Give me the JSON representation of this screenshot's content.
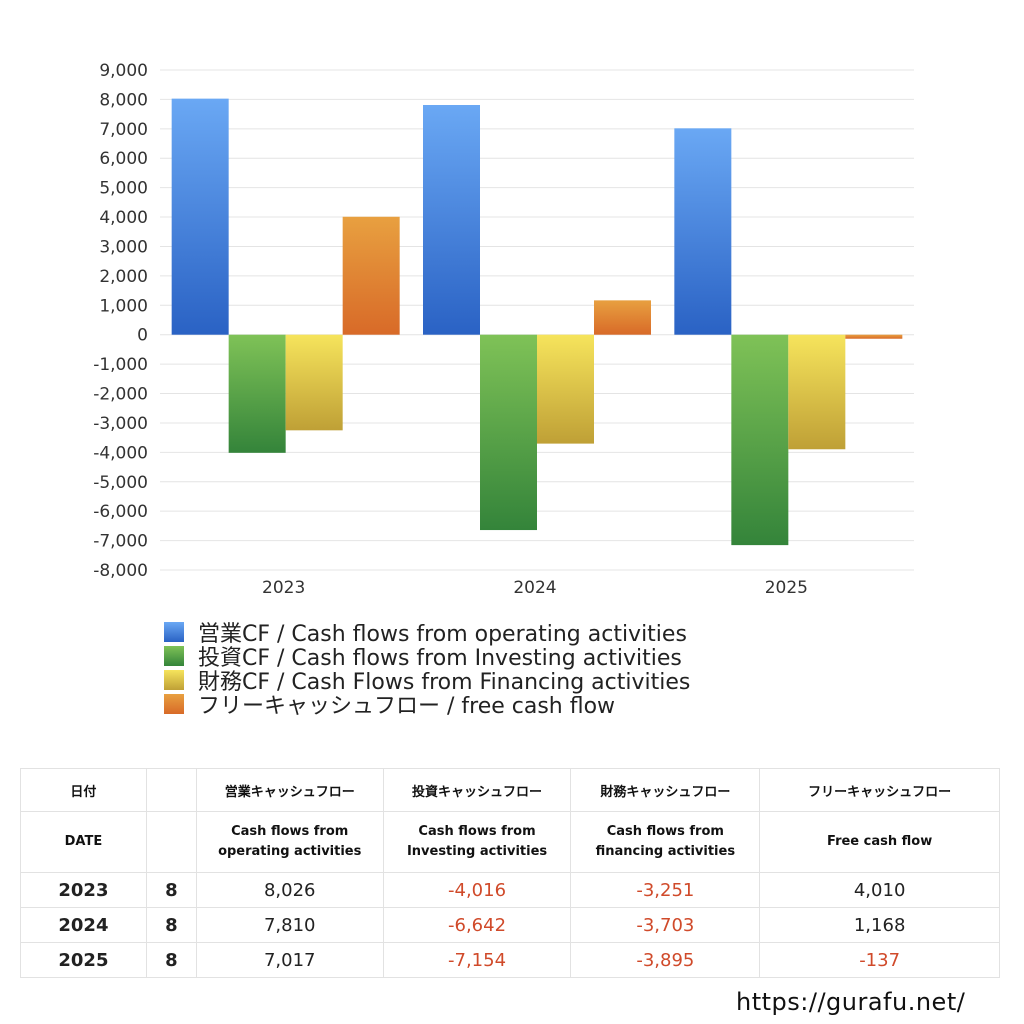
{
  "chart_data": {
    "type": "bar",
    "categories": [
      "2023",
      "2024",
      "2025"
    ],
    "series": [
      {
        "name": "営業CF / Cash flows from operating activities",
        "values": [
          8026,
          7810,
          7017
        ],
        "color": "#3c7ae0"
      },
      {
        "name": "投資CF / Cash flows from Investing activities",
        "values": [
          -4016,
          -6642,
          -7154
        ],
        "color": "#4e9f3f"
      },
      {
        "name": "財務CF / Cash Flows from Financing activities",
        "values": [
          -3251,
          -3703,
          -3895
        ],
        "color": "#e0c43c"
      },
      {
        "name": "フリーキャッシュフロー / free cash flow",
        "values": [
          4010,
          1168,
          -137
        ],
        "color": "#e07c30"
      }
    ],
    "ylim": [
      -8000,
      9000
    ],
    "yticks": [
      "9,000",
      "8,000",
      "7,000",
      "6,000",
      "5,000",
      "4,000",
      "3,000",
      "2,000",
      "1,000",
      "0",
      "-1,000",
      "-2,000",
      "-3,000",
      "-4,000",
      "-5,000",
      "-6,000",
      "-7,000",
      "-8,000"
    ],
    "grid": true,
    "legend_position": "bottom"
  },
  "table": {
    "header1": [
      "日付",
      "",
      "営業キャッシュフロー",
      "投資キャッシュフロー",
      "財務キャッシュフロー",
      "フリーキャッシュフロー"
    ],
    "header2": [
      "DATE",
      "",
      "Cash flows from\noperating activities",
      "Cash flows from\nInvesting activities",
      "Cash flows from\nfinancing activities",
      "Free cash flow"
    ],
    "rows": [
      {
        "year": "2023",
        "month": "8",
        "values": [
          "8,026",
          "-4,016",
          "-3,251",
          "4,010"
        ]
      },
      {
        "year": "2024",
        "month": "8",
        "values": [
          "7,810",
          "-6,642",
          "-3,703",
          "1,168"
        ]
      },
      {
        "year": "2025",
        "month": "8",
        "values": [
          "7,017",
          "-7,154",
          "-3,895",
          "-137"
        ]
      }
    ]
  },
  "site": "https://gurafu.net/"
}
